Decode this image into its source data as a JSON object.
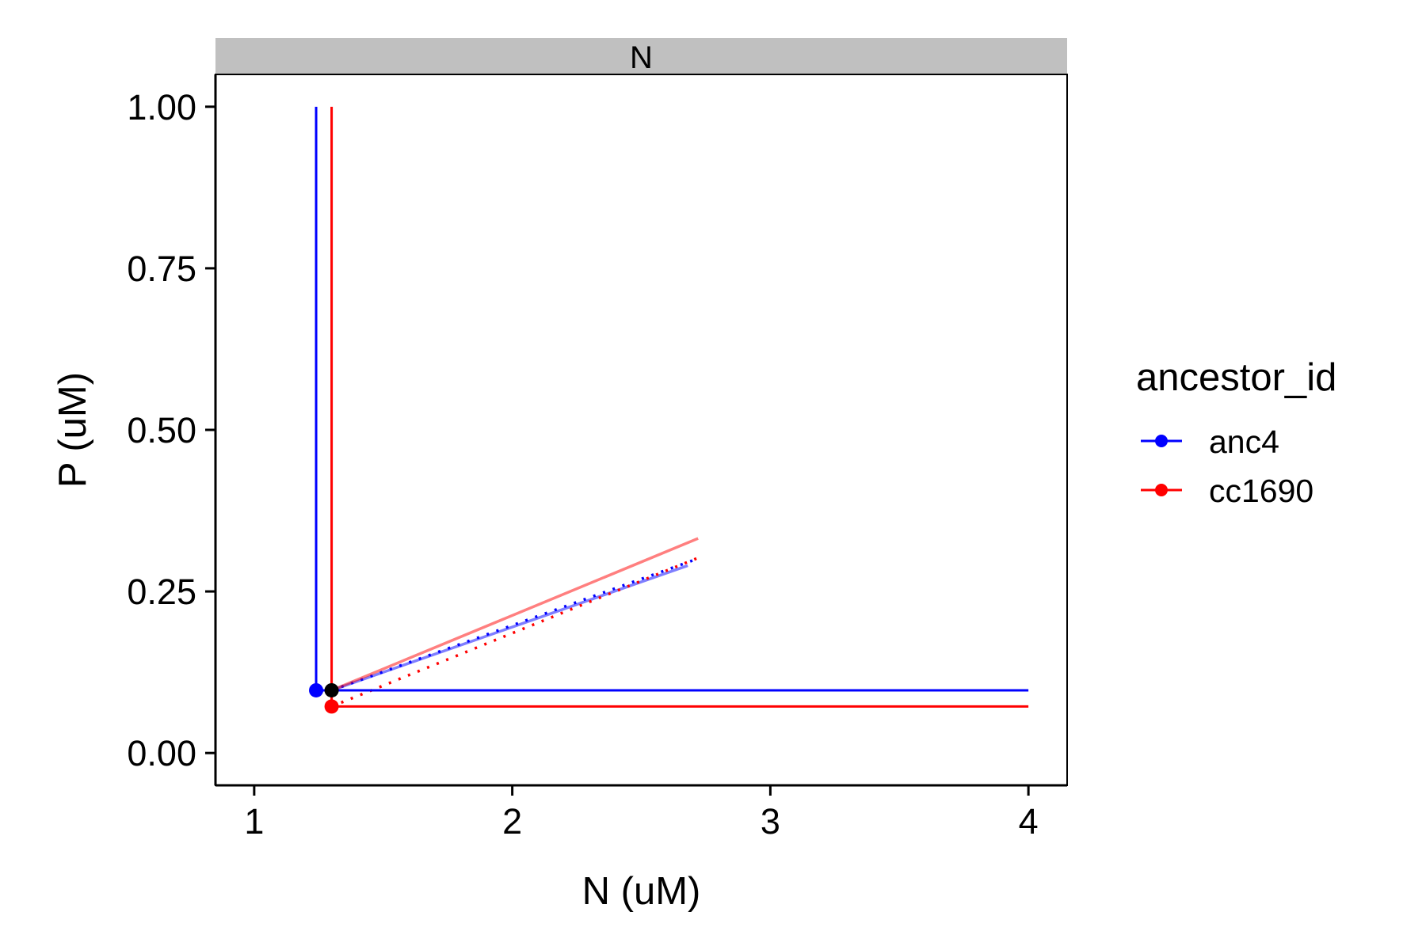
{
  "chart_data": {
    "type": "line",
    "facet_label": "N",
    "xlabel": "N (uM)",
    "ylabel": "P (uM)",
    "xlim": [
      0.85,
      4.15
    ],
    "ylim": [
      -0.05,
      1.05
    ],
    "x_ticks": [
      1,
      2,
      3,
      4
    ],
    "y_ticks": [
      0.0,
      0.25,
      0.5,
      0.75,
      1.0
    ],
    "x_tick_labels": [
      "1",
      "2",
      "3",
      "4"
    ],
    "y_tick_labels": [
      "0.00",
      "0.25",
      "0.50",
      "0.75",
      "1.00"
    ],
    "grid": false,
    "legend": {
      "title": "ancestor_id",
      "position": "right",
      "entries": [
        {
          "label": "anc4",
          "color": "#0000ff"
        },
        {
          "label": "cc1690",
          "color": "#ff0000"
        }
      ]
    },
    "series": [
      {
        "name": "anc4",
        "color": "#0000ff",
        "vertical": {
          "x": 1.24,
          "y": [
            0.097,
            1.0
          ]
        },
        "horizontal": {
          "y": 0.097,
          "x": [
            1.24,
            4.0
          ]
        },
        "point": {
          "x": 1.24,
          "y": 0.097
        },
        "solid_line": {
          "x": [
            1.3,
            2.68
          ],
          "y": [
            0.097,
            0.29
          ]
        },
        "dotted_line": {
          "x": [
            1.3,
            2.7
          ],
          "y": [
            0.097,
            0.298
          ]
        }
      },
      {
        "name": "cc1690",
        "color": "#ff0000",
        "vertical": {
          "x": 1.3,
          "y": [
            0.072,
            1.0
          ]
        },
        "horizontal": {
          "y": 0.072,
          "x": [
            1.3,
            4.0
          ]
        },
        "point": {
          "x": 1.3,
          "y": 0.072
        },
        "solid_line": {
          "x": [
            1.3,
            2.72
          ],
          "y": [
            0.097,
            0.332
          ]
        },
        "dotted_line": {
          "x": [
            1.3,
            2.72
          ],
          "y": [
            0.072,
            0.302
          ]
        }
      }
    ],
    "intersection_point": {
      "x": 1.3,
      "y": 0.097,
      "color": "#000000"
    }
  }
}
